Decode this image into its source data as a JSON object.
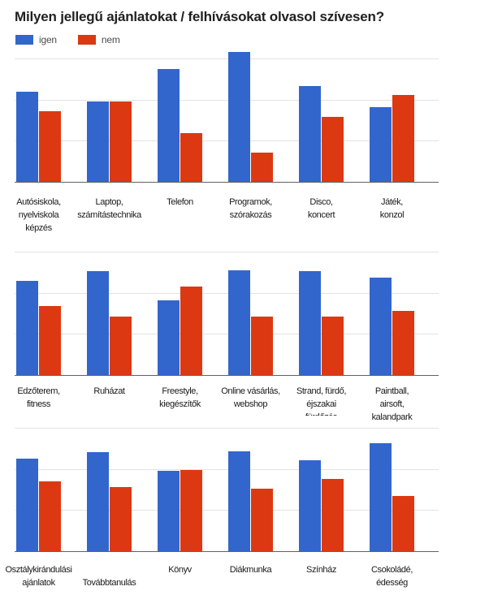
{
  "title": "Milyen jellegű ajánlatokat / felhívásokat olvasol szívesen?",
  "legend": {
    "items": [
      {
        "label": "igen",
        "color": "#3366cc"
      },
      {
        "label": "nem",
        "color": "#dc3912"
      }
    ]
  },
  "colors": {
    "igen": "#3366cc",
    "nem": "#dc3912",
    "gridline": "#e3e3e3",
    "axis_line": "#616161"
  },
  "chart_data": [
    {
      "type": "bar",
      "title": "",
      "xlabel": "",
      "ylabel": "",
      "ylim": [
        0,
        16.5
      ],
      "gridline_values": [
        5,
        10,
        15
      ],
      "grid": true,
      "legend_position": "top",
      "categories": [
        "Autósiskola, nyelviskola képzés",
        "Laptop, számítástechnika",
        "Telefon",
        "Programok, szórakozás",
        "Disco, koncert",
        "Játék, konzol"
      ],
      "category_lines": [
        [
          "Autósiskola,",
          "nyelviskola",
          "képzés"
        ],
        [
          "Laptop,",
          "számítástechnika"
        ],
        [
          "Telefon"
        ],
        [
          "Programok,",
          "szórakozás"
        ],
        [
          "Disco,",
          "koncert"
        ],
        [
          "Játék,",
          "konzol"
        ]
      ],
      "clipped_label_index": -1,
      "staggered_label_index": -1,
      "series": [
        {
          "name": "igen",
          "color": "#3366cc",
          "values": [
            10.9,
            9.8,
            13.7,
            15.8,
            11.6,
            9.1
          ]
        },
        {
          "name": "nem",
          "color": "#dc3912",
          "values": [
            8.6,
            9.8,
            5.9,
            3.5,
            7.9,
            10.5
          ]
        }
      ]
    },
    {
      "type": "bar",
      "title": "",
      "xlabel": "",
      "ylabel": "",
      "ylim": [
        0,
        16.5
      ],
      "gridline_values": [
        5,
        10,
        15
      ],
      "grid": true,
      "legend_position": "none",
      "categories": [
        "Edzőterem, fitness",
        "Ruházat",
        "Freestyle, kiegészítők",
        "Online vásárlás, webshop",
        "Strand, fürdő, éjszakai fürdőzés",
        "Paintball, airsoft, kalandpark"
      ],
      "category_lines": [
        [
          "Edzőterem,",
          "fitness"
        ],
        [
          "Ruházat"
        ],
        [
          "Freestyle,",
          "kiegészítők"
        ],
        [
          "Online vásárlás,",
          "webshop"
        ],
        [
          "Strand, fürdő,",
          "éjszakai",
          "fürdőzés"
        ],
        [
          "Paintball,",
          "airsoft,",
          "kalandpark"
        ]
      ],
      "clipped_label_index": 4,
      "staggered_label_index": -1,
      "series": [
        {
          "name": "igen",
          "color": "#3366cc",
          "values": [
            11.4,
            12.6,
            9.1,
            12.7,
            12.6,
            11.8
          ]
        },
        {
          "name": "nem",
          "color": "#dc3912",
          "values": [
            8.4,
            7.1,
            10.7,
            7.1,
            7.1,
            7.8
          ]
        }
      ]
    },
    {
      "type": "bar",
      "title": "",
      "xlabel": "",
      "ylabel": "",
      "ylim": [
        0,
        16.5
      ],
      "gridline_values": [
        5,
        10,
        15
      ],
      "grid": true,
      "legend_position": "none",
      "categories": [
        "Osztálykirándulási ajánlatok",
        "Továbbtanulás",
        "Könyv",
        "Diákmunka",
        "Színház",
        "Csokoládé, édesség"
      ],
      "category_lines": [
        [
          "Osztálykirándulási",
          "ajánlatok"
        ],
        [
          "Továbbtanulás"
        ],
        [
          "Könyv"
        ],
        [
          "Diákmunka"
        ],
        [
          "Színház"
        ],
        [
          "Csokoládé,",
          "édesség"
        ]
      ],
      "clipped_label_index": -1,
      "staggered_label_index": 1,
      "series": [
        {
          "name": "igen",
          "color": "#3366cc",
          "values": [
            11.2,
            12.0,
            9.8,
            12.1,
            11.0,
            13.1
          ]
        },
        {
          "name": "nem",
          "color": "#dc3912",
          "values": [
            8.5,
            7.8,
            9.9,
            7.6,
            8.8,
            6.7
          ]
        }
      ]
    }
  ]
}
